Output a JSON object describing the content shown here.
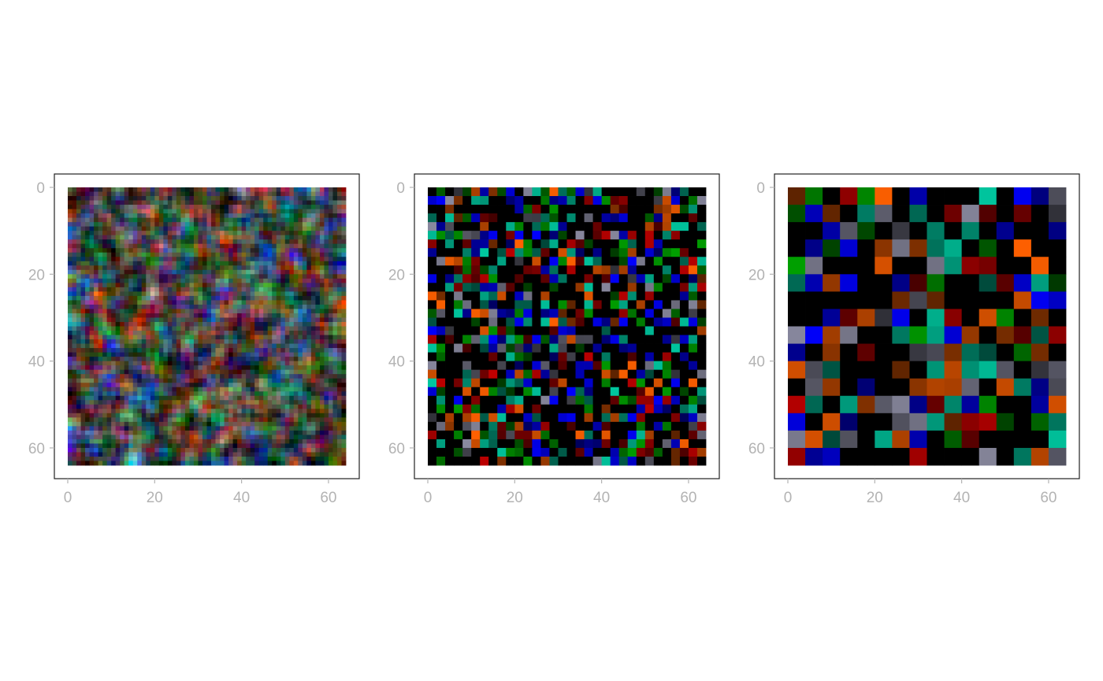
{
  "chart_data": [
    {
      "type": "heatmap",
      "grid_size": 64,
      "block_size": 1,
      "smoothing": "high",
      "xlim": [
        0,
        64
      ],
      "ylim": [
        64,
        0
      ],
      "xticks": [
        "0",
        "20",
        "40",
        "60"
      ],
      "yticks": [
        "0",
        "20",
        "40",
        "60"
      ],
      "colors": [
        "#000000",
        "#0000ff",
        "#00a000",
        "#c00000",
        "#00c8a0",
        "#8a8aa0",
        "#ff6000"
      ],
      "seed": 11
    },
    {
      "type": "heatmap",
      "grid_size": 64,
      "block_size": 2,
      "smoothing": "medium",
      "xlim": [
        0,
        64
      ],
      "ylim": [
        64,
        0
      ],
      "xticks": [
        "0",
        "20",
        "40",
        "60"
      ],
      "yticks": [
        "0",
        "20",
        "40",
        "60"
      ],
      "colors": [
        "#000000",
        "#0000ff",
        "#00a000",
        "#c00000",
        "#00c8a0",
        "#8a8aa0",
        "#ff6000"
      ],
      "seed": 23
    },
    {
      "type": "heatmap",
      "grid_size": 64,
      "block_size": 4,
      "smoothing": "none",
      "xlim": [
        0,
        64
      ],
      "ylim": [
        64,
        0
      ],
      "xticks": [
        "0",
        "20",
        "40",
        "60"
      ],
      "yticks": [
        "0",
        "20",
        "40",
        "60"
      ],
      "colors": [
        "#000000",
        "#0000ff",
        "#00a000",
        "#c00000",
        "#00c8a0",
        "#8a8aa0",
        "#ff6000"
      ],
      "seed": 37
    }
  ]
}
